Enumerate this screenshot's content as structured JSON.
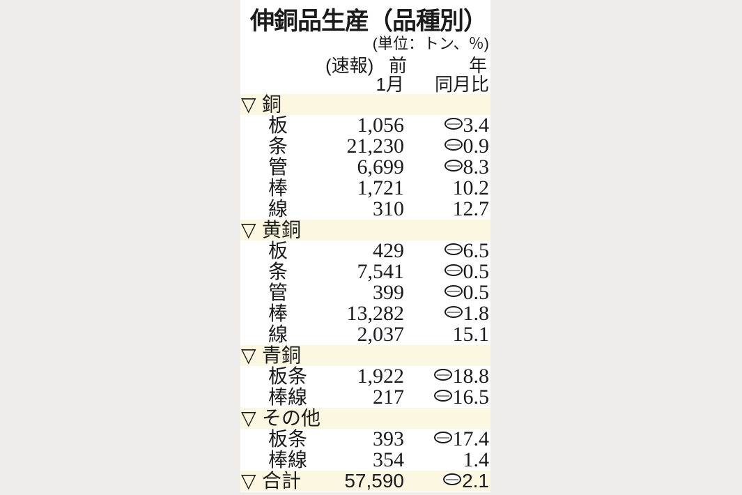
{
  "page": {
    "title": "伸銅品生産（品種別）",
    "unit_note": "(単位：トン、％)",
    "prelim_label": "(速報)",
    "yoy_header_char1": "前",
    "yoy_header_char2": "年",
    "month_col_header": "1月",
    "yoy_col_header": "同月比",
    "section_marker": "▽"
  },
  "icons": {
    "negative_marker": "circled-minus",
    "section_marker": "white-down-triangle"
  },
  "colors": {
    "page_bg": "#eeedeb",
    "panel_bg": "#ffffff",
    "band_bg": "#fbf7e0",
    "text": "#1b1b1b",
    "minus_bar": "#8a8a8a"
  },
  "table": {
    "sections": [
      {
        "name": "銅",
        "rows": [
          {
            "label": "板",
            "value": "1,056",
            "pct": "3.4",
            "negative": true
          },
          {
            "label": "条",
            "value": "21,230",
            "pct": "0.9",
            "negative": true
          },
          {
            "label": "管",
            "value": "6,699",
            "pct": "8.3",
            "negative": true
          },
          {
            "label": "棒",
            "value": "1,721",
            "pct": "10.2",
            "negative": false
          },
          {
            "label": "線",
            "value": "310",
            "pct": "12.7",
            "negative": false
          }
        ]
      },
      {
        "name": "黄銅",
        "rows": [
          {
            "label": "板",
            "value": "429",
            "pct": "6.5",
            "negative": true
          },
          {
            "label": "条",
            "value": "7,541",
            "pct": "0.5",
            "negative": true
          },
          {
            "label": "管",
            "value": "399",
            "pct": "0.5",
            "negative": true
          },
          {
            "label": "棒",
            "value": "13,282",
            "pct": "1.8",
            "negative": true
          },
          {
            "label": "線",
            "value": "2,037",
            "pct": "15.1",
            "negative": false
          }
        ]
      },
      {
        "name": "青銅",
        "rows": [
          {
            "label": "板条",
            "value": "1,922",
            "pct": "18.8",
            "negative": true
          },
          {
            "label": "棒線",
            "value": "217",
            "pct": "16.5",
            "negative": true
          }
        ]
      },
      {
        "name": "その他",
        "rows": [
          {
            "label": "板条",
            "value": "393",
            "pct": "17.4",
            "negative": true
          },
          {
            "label": "棒線",
            "value": "354",
            "pct": "1.4",
            "negative": false
          }
        ]
      },
      {
        "name": "合計",
        "value": "57,590",
        "pct": "2.1",
        "negative": true,
        "rows": []
      }
    ]
  }
}
